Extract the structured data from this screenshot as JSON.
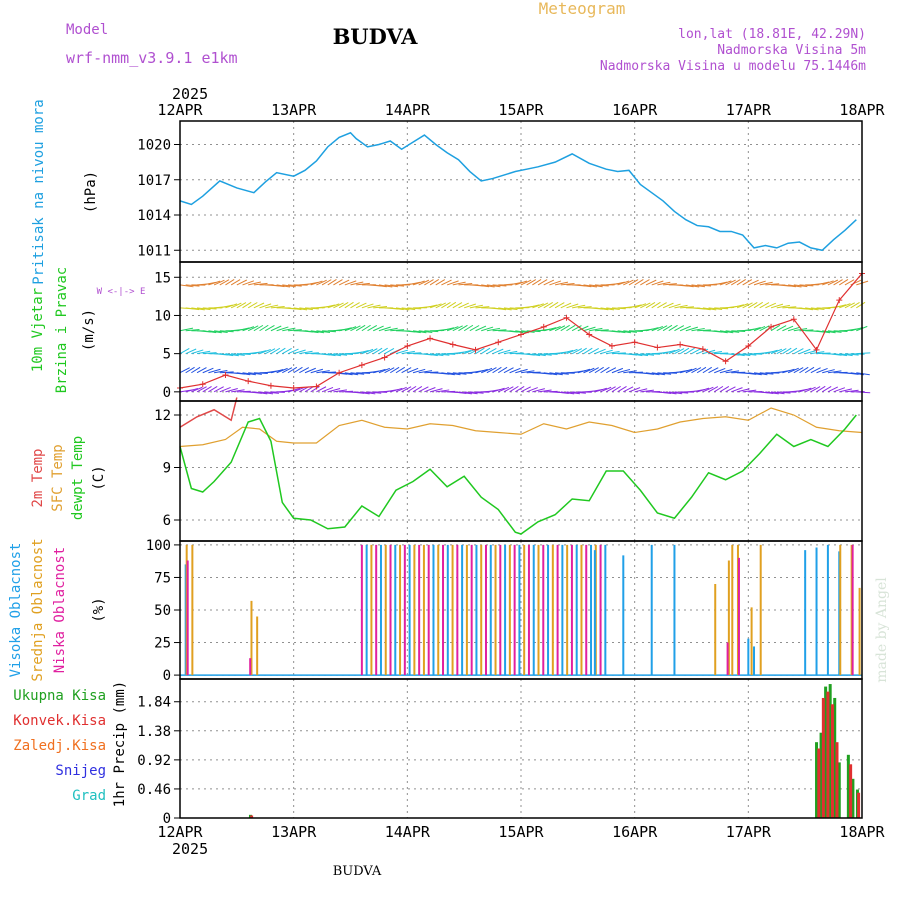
{
  "header": {
    "title": "BUDVA",
    "meteogram": "Meteogram",
    "model_label": "Model",
    "model_name": "wrf-nmm_v3.9.1 e1km",
    "lonlat": "lon,lat (18.81E, 42.29N)",
    "elevation": "Nadmorska Visina 5m",
    "model_elevation": "Nadmorska Visina u modelu 75.1446m",
    "watermark": "made by Angel",
    "footer_title": "BUDVA"
  },
  "time_axis": {
    "year": "2025",
    "ticks": [
      "12APR",
      "13APR",
      "14APR",
      "15APR",
      "16APR",
      "17APR",
      "18APR"
    ]
  },
  "colors": {
    "pressure": "#1ea0e0",
    "temp2m": "#e04848",
    "sfc_temp": "#e0a030",
    "dewpoint": "#20c820",
    "cloud_high": "#20a0e8",
    "cloud_mid": "#e0a020",
    "cloud_low": "#e020a0",
    "precip_total": "#20a020",
    "precip_conv": "#e03030",
    "wind_speed": "#e03030"
  },
  "chart_data": [
    {
      "type": "line",
      "panel": "pressure",
      "ylabel": [
        "Pritisak na nivou mora",
        "(hPa)"
      ],
      "yticks": [
        1011,
        1014,
        1017,
        1020
      ],
      "ylim": [
        1010.0,
        1022.0
      ],
      "grid": true,
      "series": [
        {
          "x": [
            0,
            0.1,
            0.2,
            0.35,
            0.5,
            0.65,
            0.75,
            0.85,
            1.0,
            1.1,
            1.2,
            1.3,
            1.4,
            1.5,
            1.55,
            1.65,
            1.75,
            1.85,
            1.95,
            2.05,
            2.15,
            2.25,
            2.35,
            2.45,
            2.55,
            2.65,
            2.75,
            2.85,
            2.95,
            3.05,
            3.15,
            3.3,
            3.45,
            3.6,
            3.75,
            3.85,
            3.95,
            4.05,
            4.15,
            4.25,
            4.35,
            4.45,
            4.55,
            4.65,
            4.75,
            4.85,
            4.95,
            5.05,
            5.15,
            5.25,
            5.35,
            5.45,
            5.55,
            5.65,
            5.75,
            5.85,
            5.95
          ],
          "values": [
            1015.2,
            1014.9,
            1015.6,
            1016.9,
            1016.3,
            1015.9,
            1016.8,
            1017.6,
            1017.3,
            1017.8,
            1018.6,
            1019.8,
            1020.6,
            1021.0,
            1020.5,
            1019.8,
            1020.0,
            1020.3,
            1019.6,
            1020.2,
            1020.8,
            1020.0,
            1019.3,
            1018.7,
            1017.7,
            1016.9,
            1017.1,
            1017.4,
            1017.7,
            1017.9,
            1018.1,
            1018.5,
            1019.2,
            1018.4,
            1017.9,
            1017.7,
            1017.8,
            1016.6,
            1015.9,
            1015.2,
            1014.3,
            1013.6,
            1013.1,
            1013.0,
            1012.6,
            1012.6,
            1012.3,
            1011.2,
            1011.4,
            1011.2,
            1011.6,
            1011.7,
            1011.2,
            1011.0,
            1011.9,
            1012.7,
            1013.6
          ]
        }
      ]
    },
    {
      "type": "line",
      "panel": "wind",
      "ylabel": [
        "10m Vjetar",
        "Brzina i Pravac",
        "(m/s)"
      ],
      "compass": "W <-|-> E",
      "yticks": [
        0,
        5,
        10,
        15
      ],
      "ylim": [
        -1.2,
        17
      ],
      "grid": true,
      "series": [
        {
          "name": "speed",
          "x": [
            0,
            0.2,
            0.4,
            0.6,
            0.8,
            1.0,
            1.2,
            1.4,
            1.6,
            1.8,
            2.0,
            2.2,
            2.4,
            2.6,
            2.8,
            3.0,
            3.2,
            3.4,
            3.6,
            3.8,
            4.0,
            4.2,
            4.4,
            4.6,
            4.8,
            5.0,
            5.2,
            5.4,
            5.6,
            5.8,
            6.0
          ],
          "values": [
            0.5,
            1.0,
            2.2,
            1.4,
            0.8,
            0.5,
            0.7,
            2.5,
            3.5,
            4.5,
            6.0,
            7.0,
            6.2,
            5.5,
            6.5,
            7.5,
            8.5,
            9.7,
            7.5,
            6.0,
            6.5,
            5.8,
            6.2,
            5.6,
            4.0,
            6.0,
            8.5,
            9.5,
            5.5,
            12.0,
            15.5
          ]
        }
      ],
      "barb_rows": [
        0,
        2.5,
        5,
        8,
        11,
        14
      ],
      "barb_colors": [
        "#8a2be2",
        "#2050e0",
        "#20c0e0",
        "#20d060",
        "#d0d020",
        "#e08030"
      ]
    },
    {
      "type": "line",
      "panel": "temperature",
      "ylabel": [
        "2m Temp",
        "SFC Temp",
        "dewpt Temp",
        "(C)"
      ],
      "yticks": [
        6,
        9,
        12
      ],
      "ylim": [
        4.8,
        12.8
      ],
      "grid": true,
      "series": [
        {
          "name": "2m Temp",
          "x": [
            0,
            0.15,
            0.3,
            0.45,
            0.5
          ],
          "values": [
            11.3,
            11.9,
            12.3,
            11.7,
            13.0
          ]
        },
        {
          "name": "SFC Temp",
          "x": [
            0,
            0.2,
            0.4,
            0.55,
            0.7,
            0.85,
            1.0,
            1.2,
            1.4,
            1.6,
            1.8,
            2.0,
            2.2,
            2.4,
            2.6,
            2.8,
            3.0,
            3.2,
            3.4,
            3.6,
            3.8,
            4.0,
            4.2,
            4.4,
            4.6,
            4.8,
            5.0,
            5.2,
            5.4,
            5.6,
            5.8,
            6.0
          ],
          "values": [
            10.2,
            10.3,
            10.6,
            11.3,
            11.2,
            10.5,
            10.4,
            10.4,
            11.4,
            11.7,
            11.3,
            11.2,
            11.5,
            11.4,
            11.1,
            11.0,
            10.9,
            11.5,
            11.2,
            11.6,
            11.4,
            11.0,
            11.2,
            11.6,
            11.8,
            11.9,
            11.7,
            12.4,
            12.0,
            11.3,
            11.1,
            11.0
          ]
        },
        {
          "name": "dewpt Temp",
          "x": [
            0,
            0.1,
            0.2,
            0.3,
            0.45,
            0.6,
            0.7,
            0.8,
            0.9,
            1.0,
            1.15,
            1.3,
            1.45,
            1.6,
            1.75,
            1.9,
            2.05,
            2.2,
            2.35,
            2.5,
            2.65,
            2.8,
            2.95,
            3.0,
            3.15,
            3.3,
            3.45,
            3.6,
            3.75,
            3.9,
            4.05,
            4.2,
            4.35,
            4.5,
            4.65,
            4.8,
            4.95,
            5.1,
            5.25,
            5.4,
            5.55,
            5.7,
            5.85,
            5.95
          ],
          "values": [
            10.2,
            7.8,
            7.6,
            8.2,
            9.3,
            11.6,
            11.8,
            10.5,
            7.0,
            6.1,
            6.0,
            5.5,
            5.6,
            6.8,
            6.2,
            7.7,
            8.2,
            8.9,
            7.9,
            8.5,
            7.3,
            6.6,
            5.3,
            5.2,
            5.9,
            6.3,
            7.2,
            7.1,
            8.8,
            8.8,
            7.7,
            6.4,
            6.1,
            7.3,
            8.7,
            8.3,
            8.8,
            9.8,
            10.9,
            10.2,
            10.6,
            10.2,
            11.2,
            12.0
          ]
        }
      ]
    },
    {
      "type": "bar",
      "panel": "cloud",
      "ylabel": [
        "Visoka Oblacnost",
        "Srednja Oblacnost",
        "Niska Oblacnost",
        "(%)"
      ],
      "yticks": [
        0,
        25,
        50,
        75,
        100
      ],
      "ylim": [
        -3,
        103
      ],
      "grid": true,
      "series": [
        {
          "name": "Visoka Oblacnost",
          "x": [
            0.05,
            3.65,
            3.9,
            4.15,
            4.35,
            5.0,
            5.05,
            5.5,
            5.6,
            5.7,
            5.8
          ],
          "values": [
            85,
            96,
            92,
            100,
            100,
            28,
            22,
            96,
            98,
            100,
            95
          ]
        },
        {
          "name": "Srednja Oblacnost",
          "x": [
            0.05,
            0.1,
            0.62,
            0.67,
            4.7,
            4.82,
            4.85,
            4.9,
            5.02,
            5.1,
            5.8,
            5.9,
            5.97
          ],
          "values": [
            100,
            100,
            57,
            45,
            70,
            88,
            100,
            100,
            52,
            100,
            100,
            100,
            67
          ]
        },
        {
          "name": "Niska Oblacnost",
          "x": [
            0.05,
            0.6,
            4.8,
            4.9,
            5.9
          ],
          "values": [
            88,
            13,
            25,
            90,
            100
          ]
        }
      ],
      "dense_cloud_range_days": [
        1.6,
        3.75
      ]
    },
    {
      "type": "bar",
      "panel": "precip",
      "ylabel": [
        "1hr Precip (mm)"
      ],
      "legend": [
        "Ukupna Kisa",
        "Konvek.Kisa",
        "Zaledj.Kisa",
        "Snijeg",
        "Grad"
      ],
      "legend_colors": [
        "#20a020",
        "#e03030",
        "#f07020",
        "#3030e0",
        "#20c0c0"
      ],
      "yticks": [
        0,
        0.46,
        0.92,
        1.38,
        1.84
      ],
      "ylim": [
        0,
        2.2
      ],
      "grid": true,
      "series": [
        {
          "name": "Ukupna Kisa",
          "x": [
            0.62,
            5.6,
            5.64,
            5.68,
            5.72,
            5.76,
            5.8,
            5.88,
            5.92,
            5.96
          ],
          "values": [
            0.05,
            1.2,
            1.35,
            2.08,
            2.12,
            1.9,
            0.88,
            1.0,
            0.62,
            0.45
          ]
        },
        {
          "name": "Konvek.Kisa",
          "x": [
            0.63,
            5.62,
            5.66,
            5.7,
            5.74,
            5.78,
            5.9,
            5.97
          ],
          "values": [
            0.04,
            1.1,
            1.9,
            2.0,
            1.8,
            1.2,
            0.85,
            0.4
          ]
        }
      ]
    }
  ]
}
